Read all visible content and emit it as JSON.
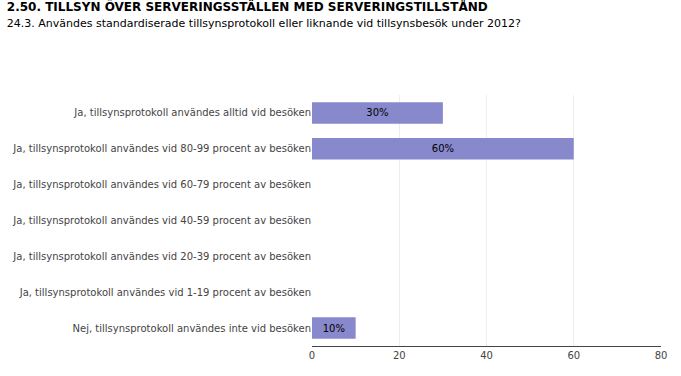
{
  "chart_data": {
    "type": "bar",
    "orientation": "horizontal",
    "title": "2.50. TILLSYN ÖVER SERVERINGSSTÄLLEN MED SERVERINGSTILLSTÅND",
    "subtitle": "24.3. Användes standardiserade tillsynsprotokoll eller liknande vid tillsynsbesök under 2012?",
    "categories": [
      "Ja, tillsynsprotokoll användes alltid vid besöken",
      "Ja, tillsynsprotokoll användes vid 80-99 procent av besöken",
      "Ja, tillsynsprotokoll användes vid 60-79 procent av besöken",
      "Ja, tillsynsprotokoll användes vid 40-59 procent av besöken",
      "Ja, tillsynsprotokoll användes vid 20-39 procent av besöken",
      "Ja, tillsynsprotokoll användes vid 1-19 procent av besöken",
      "Nej, tillsynsprotokoll användes inte vid besöken"
    ],
    "values": [
      30,
      60,
      0,
      0,
      0,
      0,
      10
    ],
    "value_labels": [
      "30%",
      "60%",
      null,
      null,
      null,
      null,
      "10%"
    ],
    "data_labels": true,
    "color": "#8888cc",
    "xlim": [
      0,
      80
    ],
    "xticks": [
      0,
      20,
      40,
      60,
      80
    ],
    "grid": true
  }
}
